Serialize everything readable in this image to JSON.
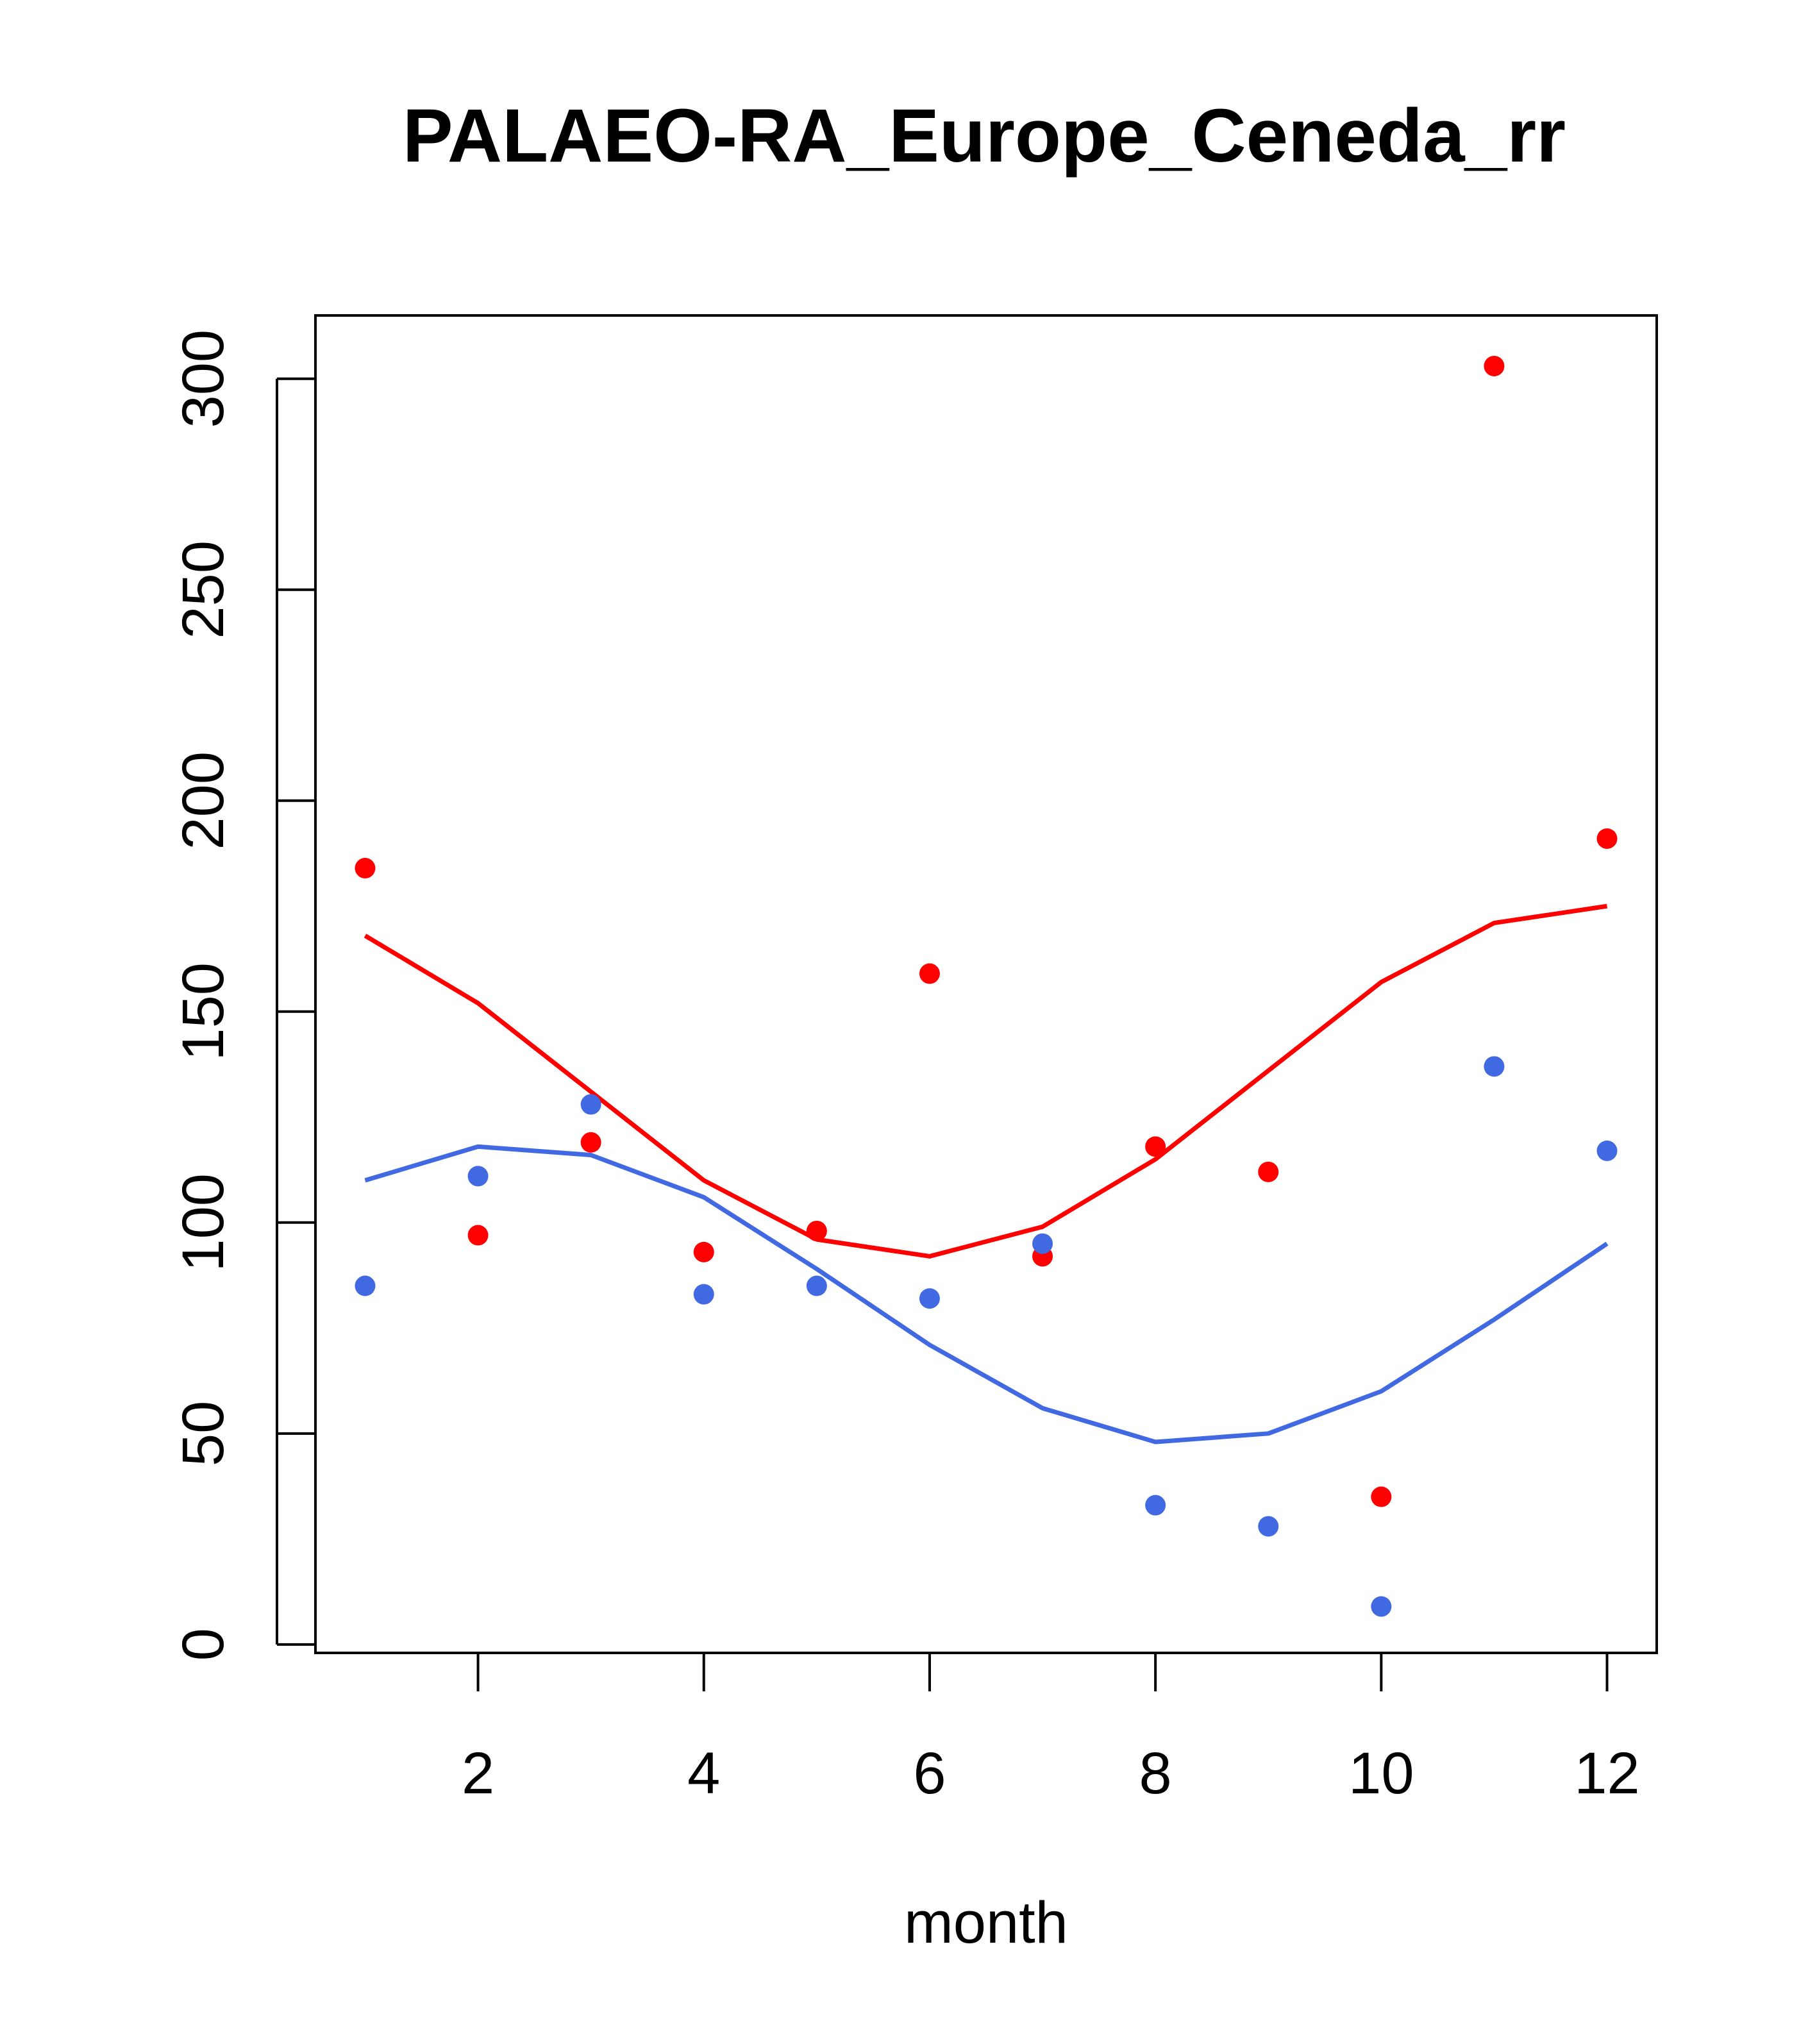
{
  "chart_data": {
    "type": "scatter",
    "title": "PALAEO-RA_Europe_Ceneda_rr",
    "xlabel": "month",
    "ylabel": "",
    "xlim": [
      0.56,
      12.44
    ],
    "ylim": [
      -2,
      315
    ],
    "xticks": [
      2,
      4,
      6,
      8,
      10,
      12
    ],
    "yticks": [
      0,
      50,
      100,
      150,
      200,
      250,
      300
    ],
    "x": [
      1,
      2,
      3,
      4,
      5,
      6,
      7,
      8,
      9,
      10,
      11,
      12
    ],
    "series": [
      {
        "name": "red points",
        "kind": "points",
        "color": "#ff0000",
        "values": [
          184,
          97,
          119,
          93,
          98,
          159,
          92,
          118,
          112,
          35,
          303,
          191
        ]
      },
      {
        "name": "red line",
        "kind": "line",
        "color": "#ff0000",
        "values": [
          168,
          152,
          131,
          110,
          96,
          92,
          99,
          115,
          136,
          157,
          171,
          175
        ]
      },
      {
        "name": "blue points",
        "kind": "points",
        "color": "#4169e1",
        "values": [
          85,
          111,
          128,
          83,
          85,
          82,
          95,
          33,
          28,
          9,
          137,
          117
        ]
      },
      {
        "name": "blue line",
        "kind": "line",
        "color": "#4169e1",
        "values": [
          110,
          118,
          116,
          106,
          89,
          71,
          56,
          48,
          50,
          60,
          77,
          95
        ]
      }
    ]
  }
}
